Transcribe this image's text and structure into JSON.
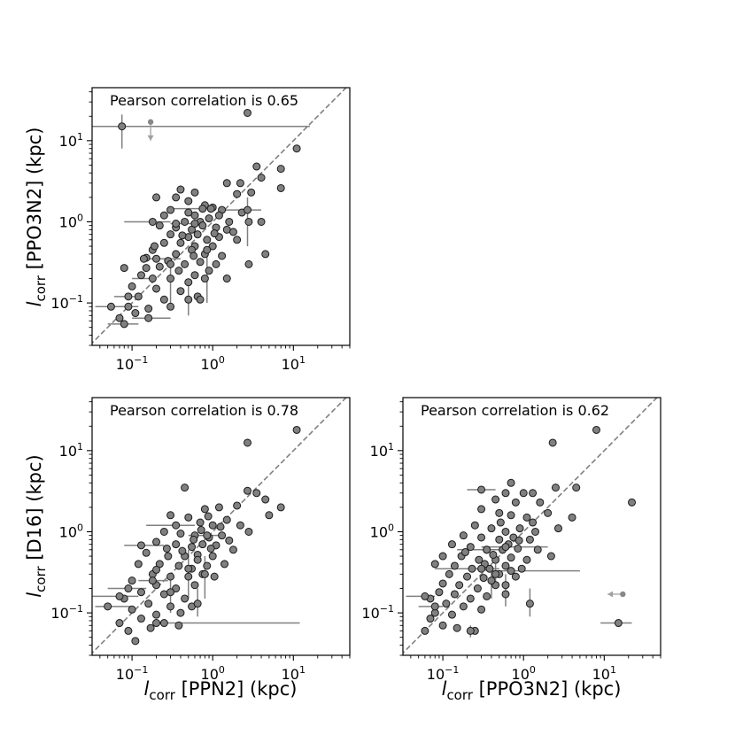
{
  "chart_data": [
    {
      "type": "scatter",
      "panel": "top-left",
      "title": "Pearson correlation is 0.65",
      "xlabel": "l_corr [PPN2] (kpc)",
      "ylabel": "l_corr [PPO3N2] (kpc)",
      "xscale": "log",
      "yscale": "log",
      "xlim": [
        0.032,
        50
      ],
      "ylim": [
        0.03,
        45
      ],
      "xticks": [
        0.1,
        1,
        10
      ],
      "yticks": [
        0.1,
        1,
        10
      ],
      "xtick_labels": [
        "10^-1",
        "10^0",
        "10^1"
      ],
      "ytick_labels": [
        "10^-1",
        "10^0",
        "10^1"
      ],
      "reference_line": "1:1",
      "points": [
        [
          2.7,
          22
        ],
        [
          11,
          8
        ],
        [
          3.5,
          4.8
        ],
        [
          7,
          4.5
        ],
        [
          4,
          3.5
        ],
        [
          2.2,
          3
        ],
        [
          1.5,
          3
        ],
        [
          0.4,
          2.5
        ],
        [
          0.6,
          2.3
        ],
        [
          2,
          2.2
        ],
        [
          3,
          2.3
        ],
        [
          7,
          2.6
        ],
        [
          0.2,
          2
        ],
        [
          0.35,
          2
        ],
        [
          0.5,
          1.8
        ],
        [
          0.8,
          1.6
        ],
        [
          1,
          1.5
        ],
        [
          1.3,
          1.4
        ],
        [
          0.3,
          1.4
        ],
        [
          0.25,
          1.2
        ],
        [
          0.6,
          1.2
        ],
        [
          1.2,
          1.2
        ],
        [
          2.3,
          1.3
        ],
        [
          0.45,
          1
        ],
        [
          0.7,
          1
        ],
        [
          0.9,
          1.1
        ],
        [
          1.6,
          1
        ],
        [
          2.8,
          1
        ],
        [
          4,
          1
        ],
        [
          0.22,
          0.9
        ],
        [
          0.35,
          0.85
        ],
        [
          0.55,
          0.8
        ],
        [
          0.75,
          0.9
        ],
        [
          1.1,
          0.85
        ],
        [
          1.5,
          0.8
        ],
        [
          0.3,
          0.7
        ],
        [
          0.5,
          0.65
        ],
        [
          0.65,
          0.7
        ],
        [
          0.85,
          0.6
        ],
        [
          1.2,
          0.65
        ],
        [
          0.4,
          0.55
        ],
        [
          0.25,
          0.55
        ],
        [
          0.6,
          0.5
        ],
        [
          1,
          0.5
        ],
        [
          2,
          0.6
        ],
        [
          0.18,
          0.45
        ],
        [
          0.35,
          0.4
        ],
        [
          0.55,
          0.45
        ],
        [
          0.8,
          0.4
        ],
        [
          1.3,
          0.38
        ],
        [
          4.5,
          0.4
        ],
        [
          0.15,
          0.36
        ],
        [
          0.28,
          0.33
        ],
        [
          0.45,
          0.3
        ],
        [
          0.7,
          0.32
        ],
        [
          1.1,
          0.3
        ],
        [
          0.22,
          0.28
        ],
        [
          0.38,
          0.25
        ],
        [
          0.6,
          0.22
        ],
        [
          0.9,
          0.25
        ],
        [
          2.8,
          0.3
        ],
        [
          0.13,
          0.22
        ],
        [
          0.3,
          0.2
        ],
        [
          0.5,
          0.18
        ],
        [
          0.8,
          0.2
        ],
        [
          1.5,
          0.2
        ],
        [
          0.1,
          0.16
        ],
        [
          0.2,
          0.15
        ],
        [
          0.4,
          0.14
        ],
        [
          0.65,
          0.12
        ],
        [
          0.12,
          0.12
        ],
        [
          0.25,
          0.11
        ],
        [
          0.7,
          0.11
        ],
        [
          0.09,
          0.09
        ],
        [
          0.16,
          0.085
        ],
        [
          0.3,
          0.09
        ],
        [
          0.11,
          0.075
        ],
        [
          0.07,
          0.065
        ],
        [
          0.14,
          0.35
        ],
        [
          0.08,
          0.27
        ],
        [
          0.15,
          0.27
        ],
        [
          0.19,
          0.5
        ],
        [
          0.35,
          0.95
        ],
        [
          0.5,
          1.3
        ],
        [
          0.95,
          1.45
        ],
        [
          1.8,
          0.75
        ],
        [
          0.42,
          0.68
        ],
        [
          0.58,
          0.38
        ],
        [
          1.05,
          0.72
        ]
      ],
      "error_points": [
        [
          0.075,
          15,
          0.03,
          16,
          8,
          21
        ],
        [
          0.18,
          1,
          0.08,
          0.3,
          1,
          1
        ],
        [
          0.75,
          1.45,
          0.3,
          1.1,
          1.45,
          1.45
        ],
        [
          2.7,
          1.4,
          1.2,
          4,
          0.5,
          2
        ],
        [
          0.6,
          0.95,
          0.3,
          0.8,
          0.95,
          0.95
        ],
        [
          0.3,
          0.3,
          0.3,
          0.3,
          0.1,
          0.35
        ],
        [
          0.85,
          0.45,
          0.85,
          0.85,
          0.1,
          0.5
        ],
        [
          0.18,
          0.2,
          0.1,
          0.2,
          0.2,
          0.2
        ],
        [
          0.16,
          0.065,
          0.1,
          0.3,
          0.065,
          0.065
        ],
        [
          0.09,
          0.12,
          0.06,
          0.12,
          0.12,
          0.12
        ],
        [
          0.2,
          0.35,
          0.15,
          0.4,
          0.35,
          0.35
        ],
        [
          0.055,
          0.09,
          0.035,
          0.12,
          0.09,
          0.09
        ],
        [
          0.5,
          0.11,
          0.5,
          0.5,
          0.07,
          0.2
        ],
        [
          0.08,
          0.055,
          0.05,
          0.12,
          0.055,
          0.055
        ]
      ],
      "upper_limits": [
        [
          0.17,
          17,
          0.17,
          10
        ]
      ]
    },
    {
      "type": "scatter",
      "panel": "bottom-left",
      "title": "Pearson correlation is 0.78",
      "xlabel": "l_corr [PPN2] (kpc)",
      "ylabel": "l_corr [D16] (kpc)",
      "xscale": "log",
      "yscale": "log",
      "xlim": [
        0.032,
        50
      ],
      "ylim": [
        0.03,
        45
      ],
      "xticks": [
        0.1,
        1,
        10
      ],
      "yticks": [
        0.1,
        1,
        10
      ],
      "xtick_labels": [
        "10^-1",
        "10^0",
        "10^1"
      ],
      "ytick_labels": [
        "10^-1",
        "10^0",
        "10^1"
      ],
      "reference_line": "1:1",
      "points": [
        [
          11,
          18
        ],
        [
          2.7,
          12.5
        ],
        [
          2.7,
          3.2
        ],
        [
          3.5,
          3
        ],
        [
          4.5,
          2.5
        ],
        [
          7,
          2
        ],
        [
          5,
          1.6
        ],
        [
          2,
          2.1
        ],
        [
          1.2,
          2
        ],
        [
          0.8,
          1.9
        ],
        [
          0.45,
          3.5
        ],
        [
          0.3,
          1.6
        ],
        [
          0.5,
          1.5
        ],
        [
          0.7,
          1.3
        ],
        [
          1,
          1.2
        ],
        [
          1.5,
          1.4
        ],
        [
          2.2,
          1.2
        ],
        [
          0.25,
          1
        ],
        [
          0.4,
          0.95
        ],
        [
          0.6,
          0.9
        ],
        [
          0.9,
          0.85
        ],
        [
          1.3,
          0.9
        ],
        [
          2.8,
          1
        ],
        [
          0.2,
          0.75
        ],
        [
          0.35,
          0.7
        ],
        [
          0.55,
          0.65
        ],
        [
          0.75,
          0.7
        ],
        [
          1.1,
          0.68
        ],
        [
          1.8,
          0.6
        ],
        [
          0.15,
          0.55
        ],
        [
          0.28,
          0.5
        ],
        [
          0.45,
          0.5
        ],
        [
          0.65,
          0.52
        ],
        [
          1,
          0.5
        ],
        [
          0.12,
          0.4
        ],
        [
          0.22,
          0.4
        ],
        [
          0.38,
          0.38
        ],
        [
          0.55,
          0.35
        ],
        [
          0.85,
          0.38
        ],
        [
          1.4,
          0.4
        ],
        [
          0.18,
          0.3
        ],
        [
          0.3,
          0.28
        ],
        [
          0.5,
          0.28
        ],
        [
          0.75,
          0.3
        ],
        [
          0.1,
          0.25
        ],
        [
          0.2,
          0.22
        ],
        [
          0.35,
          0.2
        ],
        [
          0.6,
          0.22
        ],
        [
          0.13,
          0.18
        ],
        [
          0.25,
          0.17
        ],
        [
          0.45,
          0.15
        ],
        [
          0.08,
          0.15
        ],
        [
          0.16,
          0.13
        ],
        [
          0.3,
          0.12
        ],
        [
          0.55,
          0.12
        ],
        [
          0.1,
          0.11
        ],
        [
          0.2,
          0.095
        ],
        [
          0.4,
          0.1
        ],
        [
          0.13,
          0.085
        ],
        [
          0.25,
          0.075
        ],
        [
          0.07,
          0.075
        ],
        [
          0.17,
          0.065
        ],
        [
          0.09,
          0.06
        ],
        [
          0.11,
          0.045
        ],
        [
          0.38,
          0.07
        ],
        [
          0.65,
          0.45
        ],
        [
          0.95,
          0.62
        ],
        [
          1.6,
          0.78
        ],
        [
          0.42,
          0.58
        ],
        [
          0.27,
          0.62
        ],
        [
          0.72,
          1.05
        ],
        [
          1.25,
          1.15
        ],
        [
          0.58,
          0.8
        ],
        [
          0.88,
          1.55
        ],
        [
          0.2,
          0.34
        ],
        [
          1.05,
          0.28
        ]
      ],
      "error_points": [
        [
          0.13,
          0.68,
          0.08,
          0.25,
          0.68,
          0.68
        ],
        [
          0.35,
          1.2,
          0.15,
          0.6,
          1.2,
          1.2
        ],
        [
          0.07,
          0.16,
          0.03,
          0.12,
          0.16,
          0.16
        ],
        [
          0.05,
          0.12,
          0.035,
          0.1,
          0.12,
          0.12
        ],
        [
          0.2,
          0.075,
          0.2,
          12,
          0.075,
          0.075
        ],
        [
          0.5,
          0.35,
          0.5,
          0.5,
          0.15,
          0.6
        ],
        [
          0.8,
          0.3,
          0.8,
          0.8,
          0.15,
          0.5
        ],
        [
          0.3,
          0.18,
          0.3,
          0.3,
          0.1,
          0.3
        ],
        [
          0.65,
          0.13,
          0.65,
          0.65,
          0.09,
          0.2
        ],
        [
          0.09,
          0.2,
          0.05,
          0.15,
          0.2,
          0.2
        ],
        [
          0.85,
          0.9,
          0.5,
          1.3,
          0.9,
          0.9
        ],
        [
          0.18,
          0.25,
          0.12,
          0.28,
          0.25,
          0.25
        ]
      ],
      "upper_limits": []
    },
    {
      "type": "scatter",
      "panel": "bottom-right",
      "title": "Pearson correlation is 0.62",
      "xlabel": "l_corr [PPO3N2] (kpc)",
      "ylabel": "",
      "xscale": "log",
      "yscale": "log",
      "xlim": [
        0.032,
        50
      ],
      "ylim": [
        0.03,
        45
      ],
      "xticks": [
        0.1,
        1,
        10
      ],
      "yticks": [
        0.1,
        1,
        10
      ],
      "xtick_labels": [
        "10^-1",
        "10^0",
        "10^1"
      ],
      "ytick_labels": [
        "10^-1",
        "10^0",
        "10^1"
      ],
      "reference_line": "1:1",
      "points": [
        [
          8,
          18
        ],
        [
          2.3,
          12.5
        ],
        [
          22,
          2.3
        ],
        [
          0.7,
          4
        ],
        [
          0.6,
          3
        ],
        [
          1,
          3
        ],
        [
          1.3,
          3
        ],
        [
          2.5,
          3.5
        ],
        [
          4.5,
          3.5
        ],
        [
          0.45,
          2.5
        ],
        [
          0.8,
          2.3
        ],
        [
          1.6,
          2.3
        ],
        [
          4,
          1.5
        ],
        [
          0.3,
          1.9
        ],
        [
          0.5,
          1.7
        ],
        [
          0.7,
          1.6
        ],
        [
          1.1,
          1.5
        ],
        [
          2,
          1.7
        ],
        [
          0.25,
          1.2
        ],
        [
          0.4,
          1.1
        ],
        [
          0.6,
          1
        ],
        [
          0.9,
          1.1
        ],
        [
          1.4,
          1
        ],
        [
          2.7,
          1.1
        ],
        [
          0.18,
          0.9
        ],
        [
          0.3,
          0.85
        ],
        [
          0.5,
          0.8
        ],
        [
          0.75,
          0.85
        ],
        [
          1.2,
          0.8
        ],
        [
          0.13,
          0.7
        ],
        [
          0.22,
          0.65
        ],
        [
          0.35,
          0.6
        ],
        [
          0.55,
          0.6
        ],
        [
          0.85,
          0.62
        ],
        [
          1.5,
          0.6
        ],
        [
          0.1,
          0.5
        ],
        [
          0.17,
          0.5
        ],
        [
          0.28,
          0.45
        ],
        [
          0.45,
          0.45
        ],
        [
          0.7,
          0.48
        ],
        [
          1.1,
          0.45
        ],
        [
          2.2,
          0.5
        ],
        [
          0.08,
          0.4
        ],
        [
          0.14,
          0.38
        ],
        [
          0.23,
          0.35
        ],
        [
          0.38,
          0.35
        ],
        [
          0.6,
          0.38
        ],
        [
          0.95,
          0.35
        ],
        [
          0.12,
          0.3
        ],
        [
          0.2,
          0.28
        ],
        [
          0.32,
          0.27
        ],
        [
          0.5,
          0.3
        ],
        [
          0.8,
          0.28
        ],
        [
          0.1,
          0.23
        ],
        [
          0.16,
          0.22
        ],
        [
          0.27,
          0.2
        ],
        [
          0.45,
          0.22
        ],
        [
          0.09,
          0.18
        ],
        [
          0.14,
          0.17
        ],
        [
          0.22,
          0.15
        ],
        [
          0.35,
          0.16
        ],
        [
          0.6,
          0.17
        ],
        [
          0.07,
          0.15
        ],
        [
          0.11,
          0.13
        ],
        [
          0.18,
          0.12
        ],
        [
          0.3,
          0.11
        ],
        [
          0.08,
          0.1
        ],
        [
          0.13,
          0.095
        ],
        [
          0.07,
          0.085
        ],
        [
          0.1,
          0.07
        ],
        [
          0.06,
          0.06
        ],
        [
          0.15,
          0.065
        ],
        [
          0.25,
          0.06
        ],
        [
          0.42,
          0.52
        ],
        [
          0.65,
          0.7
        ],
        [
          0.33,
          0.4
        ],
        [
          1.3,
          1.3
        ],
        [
          0.52,
          1.3
        ],
        [
          0.19,
          0.56
        ],
        [
          0.88,
          0.78
        ]
      ],
      "error_points": [
        [
          0.3,
          3.3,
          0.2,
          0.45,
          3.3,
          3.3
        ],
        [
          0.3,
          0.35,
          0.08,
          0.5,
          0.35,
          0.35
        ],
        [
          0.7,
          0.33,
          0.4,
          5,
          0.33,
          0.33
        ],
        [
          0.6,
          0.65,
          0.3,
          2,
          0.65,
          0.65
        ],
        [
          0.35,
          0.6,
          0.15,
          0.5,
          0.6,
          0.6
        ],
        [
          0.4,
          0.25,
          0.4,
          0.4,
          0.15,
          0.35
        ],
        [
          0.06,
          0.16,
          0.035,
          0.08,
          0.16,
          0.16
        ],
        [
          0.08,
          0.12,
          0.05,
          0.1,
          0.12,
          0.12
        ],
        [
          1.2,
          0.13,
          1.2,
          1.2,
          0.09,
          0.2
        ],
        [
          0.22,
          0.06,
          0.22,
          0.22,
          0.05,
          0.07
        ],
        [
          15,
          0.075,
          9,
          22,
          0.075,
          0.075
        ],
        [
          0.6,
          0.22,
          0.6,
          0.6,
          0.12,
          0.3
        ],
        [
          0.45,
          0.3,
          0.45,
          0.45,
          0.2,
          0.4
        ]
      ],
      "upper_limits": [
        [
          17,
          0.17,
          11,
          0.17
        ]
      ]
    }
  ]
}
